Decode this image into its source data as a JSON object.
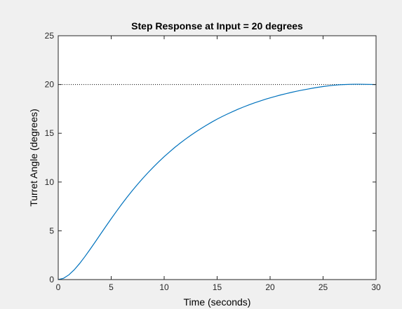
{
  "chart_data": {
    "type": "line",
    "title": "Step Response at Input = 20 degrees",
    "xlabel": "Time (seconds)",
    "ylabel": "Turret Angle (degrees)",
    "xlim": [
      0,
      30
    ],
    "ylim": [
      0,
      25
    ],
    "xticks": [
      0,
      5,
      10,
      15,
      20,
      25,
      30
    ],
    "yticks": [
      0,
      5,
      10,
      15,
      20,
      25
    ],
    "grid": false,
    "colors": {
      "series": "#0072bd",
      "reference": "#000000",
      "axes_background": "#ffffff",
      "figure_background": "#f0f0f0"
    },
    "reference_line": {
      "y": 20,
      "style": "dotted"
    },
    "series": [
      {
        "x": [
          0,
          0.5,
          1,
          1.5,
          2,
          2.5,
          3,
          3.5,
          4,
          4.5,
          5,
          5.5,
          6,
          6.5,
          7,
          7.5,
          8,
          8.5,
          9,
          9.5,
          10,
          10.5,
          11,
          11.5,
          12,
          12.5,
          13,
          13.5,
          14,
          14.5,
          15,
          15.5,
          16,
          16.5,
          17,
          17.5,
          18,
          18.5,
          19,
          19.5,
          20,
          20.5,
          21,
          21.5,
          22,
          22.5,
          23,
          23.5,
          24,
          24.5,
          25,
          25.5,
          26,
          26.5,
          27,
          27.5,
          28,
          28.5,
          29,
          29.5,
          30
        ],
        "y": [
          0.0,
          0.13,
          0.48,
          0.99,
          1.62,
          2.33,
          3.09,
          3.87,
          4.67,
          5.46,
          6.24,
          7.0,
          7.74,
          8.45,
          9.13,
          9.78,
          10.4,
          10.99,
          11.55,
          12.09,
          12.6,
          13.08,
          13.55,
          13.98,
          14.39,
          14.78,
          15.15,
          15.5,
          15.83,
          16.15,
          16.45,
          16.73,
          16.99,
          17.24,
          17.48,
          17.7,
          17.91,
          18.11,
          18.29,
          18.47,
          18.63,
          18.78,
          18.93,
          19.06,
          19.19,
          19.31,
          19.42,
          19.52,
          19.62,
          19.71,
          19.79,
          19.86,
          19.92,
          19.97,
          20.0,
          20.02,
          20.03,
          20.03,
          20.02,
          20.01,
          20.0
        ]
      }
    ]
  }
}
